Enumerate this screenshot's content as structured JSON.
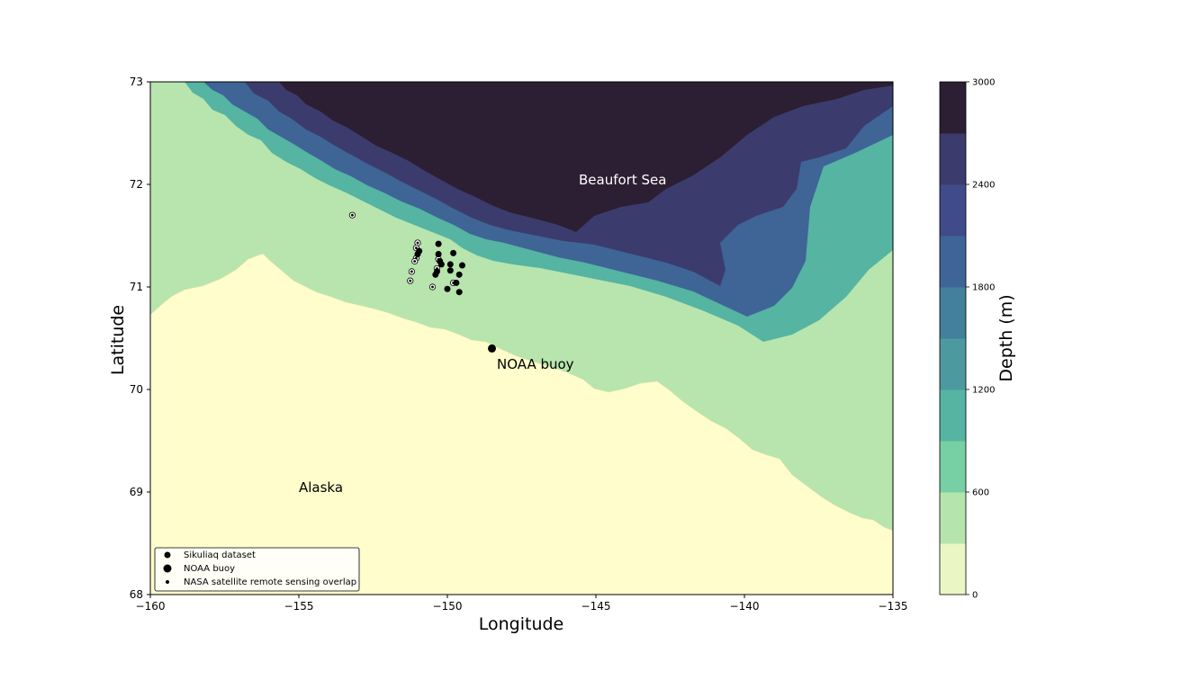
{
  "map": {
    "x_axis": {
      "label": "Longitude",
      "ticks": [
        "−160",
        "−155",
        "−150",
        "−145",
        "−140",
        "−135"
      ],
      "range": [
        -160,
        -135
      ]
    },
    "y_axis": {
      "label": "Latitude",
      "ticks": [
        "68",
        "69",
        "70",
        "71",
        "72",
        "73"
      ],
      "range": [
        68,
        73
      ]
    },
    "labels": {
      "sea": "Beaufort Sea",
      "land": "Alaska",
      "buoy": "NOAA buoy"
    },
    "colors": {
      "land": "#fefdcb",
      "shelf": "#b7e5ad",
      "depth_levels": [
        "#eaf6c4",
        "#b6e4ad",
        "#77cfa4",
        "#55b4a2",
        "#4c9aa0",
        "#42809b",
        "#3e6596",
        "#404b8b",
        "#3b3c6d",
        "#2c1f33"
      ]
    },
    "colorbar": {
      "label": "Depth (m)",
      "ticks": [
        "0",
        "600",
        "1200",
        "1800",
        "2400",
        "3000"
      ],
      "range": [
        0,
        3000
      ]
    },
    "legend": {
      "position": "lower-left",
      "items": [
        {
          "label": "Sikuliaq dataset",
          "marker": "medium-dot"
        },
        {
          "label": "NOAA buoy",
          "marker": "large-dot"
        },
        {
          "label": "NASA satellite remote sensing overlap",
          "marker": "small-dot"
        }
      ]
    },
    "noaa_buoy": {
      "lon": -148.5,
      "lat": 70.4
    },
    "sikuliaq_points": [
      {
        "lon": -150.3,
        "lat": 71.42
      },
      {
        "lon": -150.3,
        "lat": 71.32
      },
      {
        "lon": -150.25,
        "lat": 71.25
      },
      {
        "lon": -150.4,
        "lat": 71.12
      },
      {
        "lon": -149.8,
        "lat": 71.33
      },
      {
        "lon": -149.9,
        "lat": 71.22
      },
      {
        "lon": -149.9,
        "lat": 71.16
      },
      {
        "lon": -149.5,
        "lat": 71.21
      },
      {
        "lon": -149.6,
        "lat": 71.12
      },
      {
        "lon": -149.7,
        "lat": 71.04
      },
      {
        "lon": -150.0,
        "lat": 70.98
      },
      {
        "lon": -149.6,
        "lat": 70.95
      },
      {
        "lon": -151.0,
        "lat": 71.32
      },
      {
        "lon": -150.95,
        "lat": 71.35
      },
      {
        "lon": -150.35,
        "lat": 71.15
      },
      {
        "lon": -150.2,
        "lat": 71.22
      }
    ],
    "nasa_overlap_points": [
      {
        "lon": -153.2,
        "lat": 71.7
      },
      {
        "lon": -151.0,
        "lat": 71.43
      },
      {
        "lon": -151.05,
        "lat": 71.38
      },
      {
        "lon": -151.05,
        "lat": 71.28
      },
      {
        "lon": -151.1,
        "lat": 71.25
      },
      {
        "lon": -151.2,
        "lat": 71.15
      },
      {
        "lon": -151.25,
        "lat": 71.06
      },
      {
        "lon": -150.3,
        "lat": 71.27
      },
      {
        "lon": -150.35,
        "lat": 71.18
      },
      {
        "lon": -150.5,
        "lat": 71.0
      },
      {
        "lon": -149.8,
        "lat": 71.04
      }
    ]
  }
}
